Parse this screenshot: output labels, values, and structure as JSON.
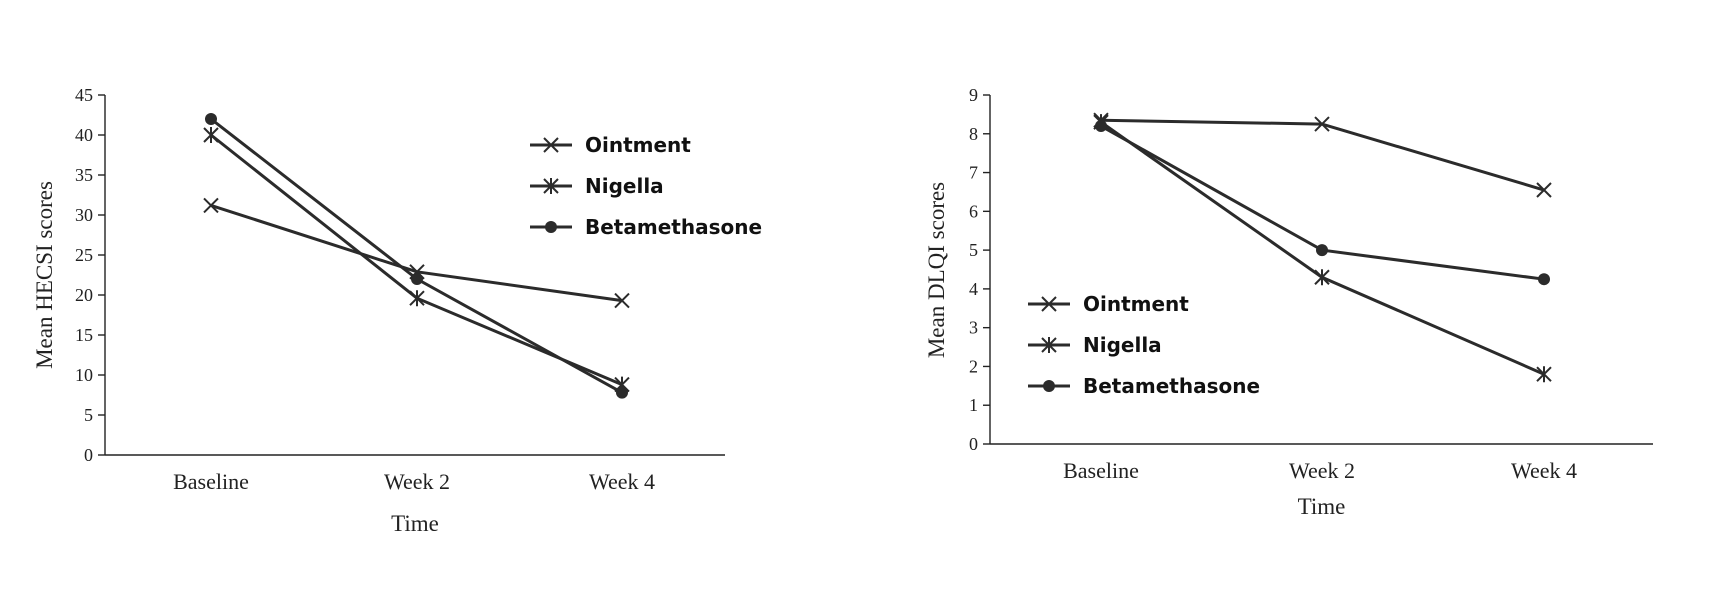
{
  "colors": {
    "ink": "#2b2b2b",
    "axis": "#222222"
  },
  "chart_data": [
    {
      "type": "line",
      "xlabel": "Time",
      "ylabel": "Mean HECSI scores",
      "categories": [
        "Baseline",
        "Week 2",
        "Week 4"
      ],
      "ylim": [
        0,
        45
      ],
      "yticks": [
        0,
        5,
        10,
        15,
        20,
        25,
        30,
        35,
        40,
        45
      ],
      "grid": false,
      "legend_position": "top-right",
      "series": [
        {
          "name": "Ointment",
          "marker": "x",
          "values": [
            31.2,
            22.9,
            19.3
          ]
        },
        {
          "name": "Nigella",
          "marker": "asterisk",
          "values": [
            40.0,
            19.6,
            8.8
          ]
        },
        {
          "name": "Betamethasone",
          "marker": "circle",
          "values": [
            42.0,
            22.0,
            7.8
          ]
        }
      ]
    },
    {
      "type": "line",
      "xlabel": "Time",
      "ylabel": "Mean DLQI scores",
      "categories": [
        "Baseline",
        "Week 2",
        "Week 4"
      ],
      "ylim": [
        0,
        9
      ],
      "yticks": [
        0,
        1,
        2,
        3,
        4,
        5,
        6,
        7,
        8,
        9
      ],
      "grid": false,
      "legend_position": "center-left",
      "series": [
        {
          "name": "Ointment",
          "marker": "x",
          "values": [
            8.35,
            8.25,
            6.55
          ]
        },
        {
          "name": "Nigella",
          "marker": "asterisk",
          "values": [
            8.3,
            4.3,
            1.8
          ]
        },
        {
          "name": "Betamethasone",
          "marker": "circle",
          "values": [
            8.2,
            5.0,
            4.25
          ]
        }
      ]
    }
  ]
}
